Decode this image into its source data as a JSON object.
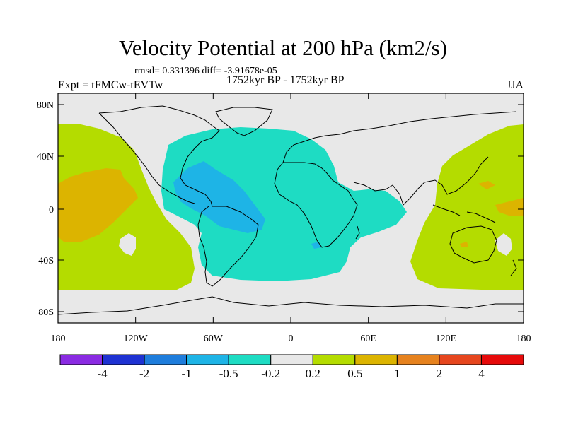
{
  "title": "Velocity Potential at 200 hPa (km2/s)",
  "stats": "rmsd= 0.331396 diff= -3.91678e-05",
  "experiment": "Expt = tFMCw-tEVTw",
  "period": "1752kyr BP - 1752kyr BP",
  "season": "JJA",
  "map": {
    "lon_ticks": [
      "180",
      "120W",
      "60W",
      "0",
      "60E",
      "120E",
      "180"
    ],
    "lat_ticks": [
      "80N",
      "40N",
      "0",
      "40S",
      "80S"
    ],
    "background_color": "#e8e8e8"
  },
  "colorbar": {
    "colors": [
      "#8a2be2",
      "#1e32d2",
      "#1e7ddc",
      "#1eb4e6",
      "#1edcc3",
      "#e8e8e8",
      "#b4dc00",
      "#dcb400",
      "#e6821e",
      "#e6461e",
      "#e60a0a"
    ],
    "labels": [
      "-4",
      "-2",
      "-1",
      "-0.5",
      "-0.2",
      "0.2",
      "0.5",
      "1",
      "2",
      "4"
    ]
  },
  "regions": {
    "positive_light": "#b4dc00",
    "positive_mid": "#dcb400",
    "negative_light": "#1edcc3",
    "negative_mid": "#1eb4e6"
  }
}
